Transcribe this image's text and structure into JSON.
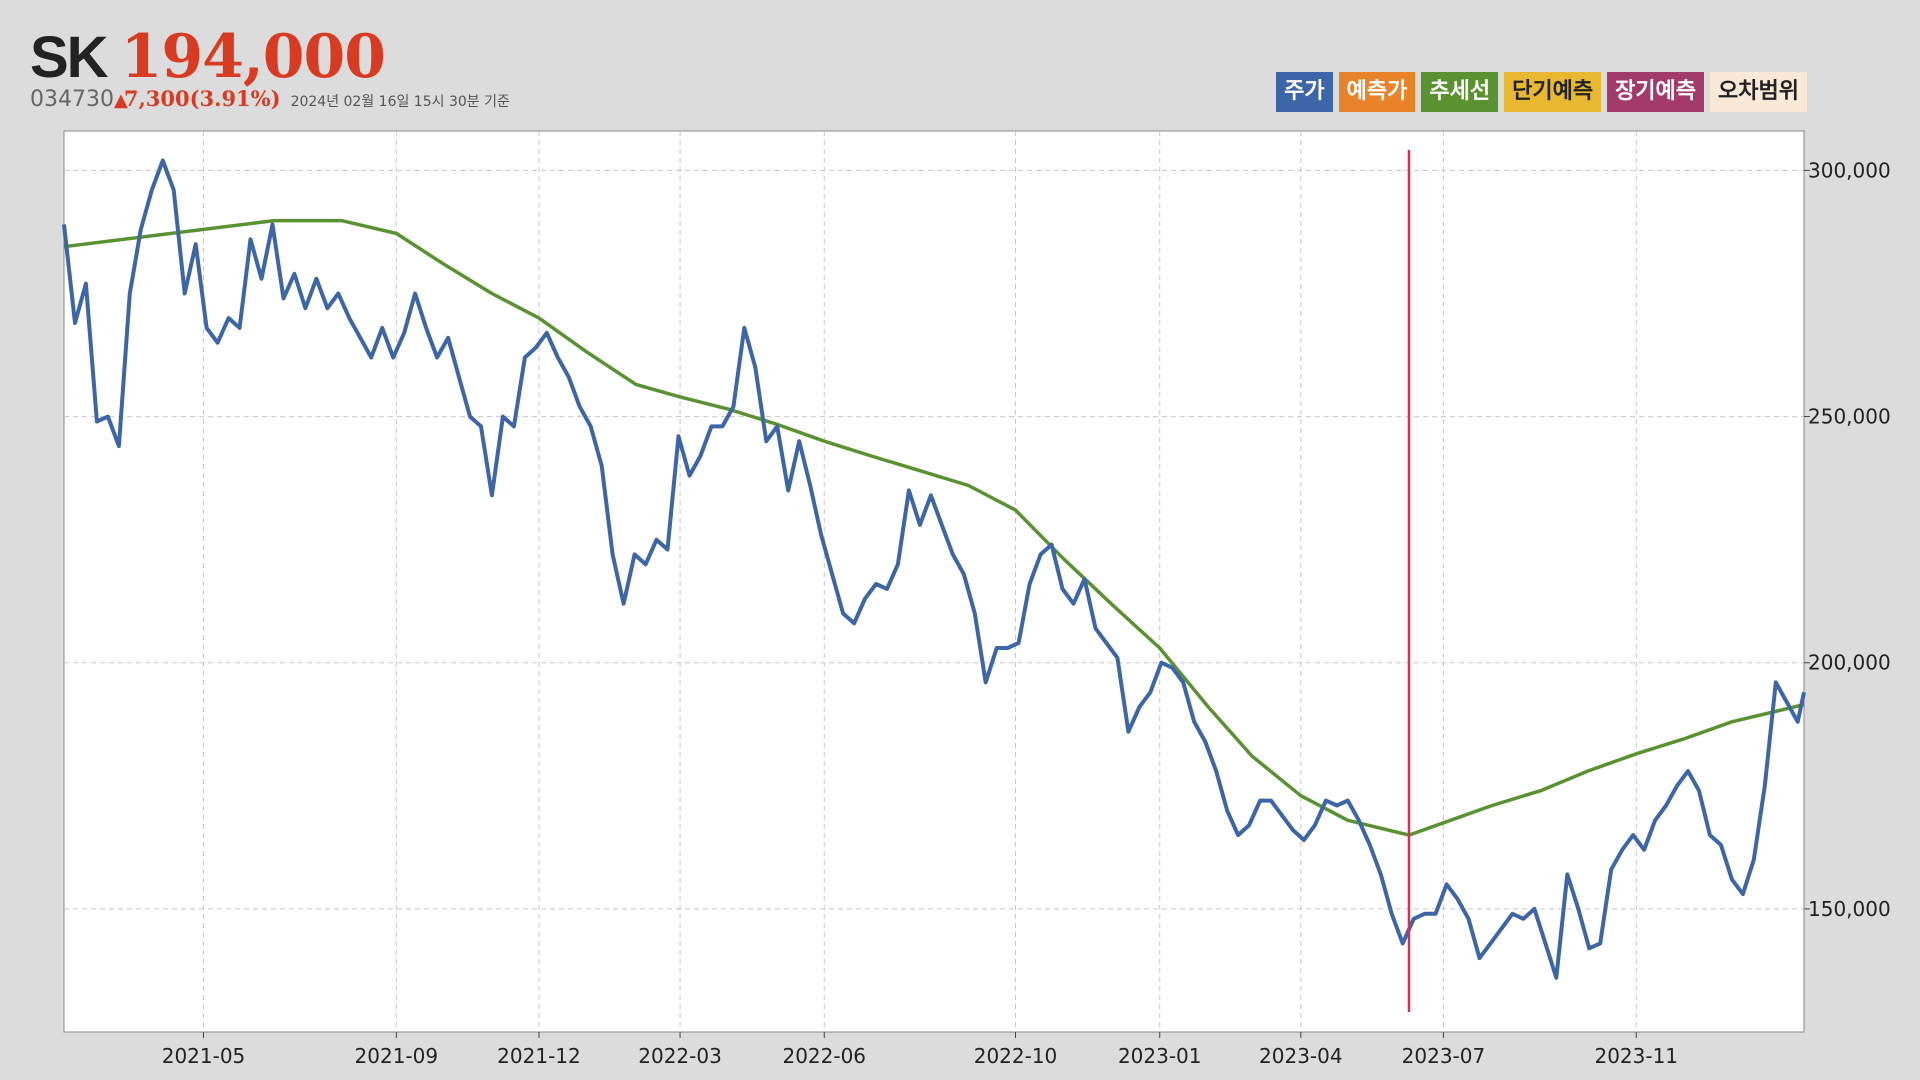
{
  "stock": {
    "name": "SK",
    "price": "194,000",
    "code": "034730",
    "change_arrow": "▲",
    "change": "7,300(3.91%)",
    "as_of": "2024년 02월 16일 15시 30분 기준"
  },
  "legend": [
    {
      "label": "주가",
      "color": "#3d66a8",
      "text_color": "#ffffff"
    },
    {
      "label": "예측가",
      "color": "#e9832a",
      "text_color": "#ffffff"
    },
    {
      "label": "추세선",
      "color": "#5a9232",
      "text_color": "#ffffff"
    },
    {
      "label": "단기예측",
      "color": "#e8b830",
      "text_color": "#222222"
    },
    {
      "label": "장기예측",
      "color": "#a23a6a",
      "text_color": "#ffffff"
    },
    {
      "label": "오차범위",
      "color": "#fbe9d7",
      "text_color": "#222222"
    }
  ],
  "chart_data": {
    "type": "line",
    "x_ticks": [
      "2021-05",
      "2021-09",
      "2021-12",
      "2022-03",
      "2022-06",
      "2022-10",
      "2023-01",
      "2023-04",
      "2023-07",
      "2023-11"
    ],
    "x_tick_dates": [
      "2021-05-01",
      "2021-09-01",
      "2021-12-01",
      "2022-03-01",
      "2022-06-01",
      "2022-10-01",
      "2023-01-01",
      "2023-04-01",
      "2023-07-01",
      "2023-11-01"
    ],
    "x_range": [
      "2021-02-01",
      "2024-02-16"
    ],
    "y_ticks": [
      "150,000",
      "200,000",
      "250,000",
      "300,000"
    ],
    "y_tick_values": [
      150000,
      200000,
      250000,
      300000
    ],
    "ylim": [
      125000,
      308000
    ],
    "y_axis_position": "right",
    "grid": true,
    "marker_line": {
      "date": "2023-06-09",
      "color": "#d63058"
    },
    "series": [
      {
        "name": "주가",
        "color": "#3d66a8",
        "points": [
          [
            "2021-02-01",
            289000
          ],
          [
            "2021-02-08",
            269000
          ],
          [
            "2021-02-15",
            277000
          ],
          [
            "2021-02-22",
            249000
          ],
          [
            "2021-03-01",
            250000
          ],
          [
            "2021-03-08",
            244000
          ],
          [
            "2021-03-15",
            275000
          ],
          [
            "2021-03-22",
            288000
          ],
          [
            "2021-03-29",
            296000
          ],
          [
            "2021-04-05",
            302000
          ],
          [
            "2021-04-12",
            296000
          ],
          [
            "2021-04-19",
            275000
          ],
          [
            "2021-04-26",
            285000
          ],
          [
            "2021-05-03",
            268000
          ],
          [
            "2021-05-10",
            265000
          ],
          [
            "2021-05-17",
            270000
          ],
          [
            "2021-05-24",
            268000
          ],
          [
            "2021-05-31",
            286000
          ],
          [
            "2021-06-07",
            278000
          ],
          [
            "2021-06-14",
            289000
          ],
          [
            "2021-06-21",
            274000
          ],
          [
            "2021-06-28",
            279000
          ],
          [
            "2021-07-05",
            272000
          ],
          [
            "2021-07-12",
            278000
          ],
          [
            "2021-07-19",
            272000
          ],
          [
            "2021-07-26",
            275000
          ],
          [
            "2021-08-02",
            270000
          ],
          [
            "2021-08-09",
            266000
          ],
          [
            "2021-08-16",
            262000
          ],
          [
            "2021-08-23",
            268000
          ],
          [
            "2021-08-30",
            262000
          ],
          [
            "2021-09-06",
            267000
          ],
          [
            "2021-09-13",
            275000
          ],
          [
            "2021-09-20",
            268000
          ],
          [
            "2021-09-27",
            262000
          ],
          [
            "2021-10-04",
            266000
          ],
          [
            "2021-10-11",
            258000
          ],
          [
            "2021-10-18",
            250000
          ],
          [
            "2021-10-25",
            248000
          ],
          [
            "2021-11-01",
            234000
          ],
          [
            "2021-11-08",
            250000
          ],
          [
            "2021-11-15",
            248000
          ],
          [
            "2021-11-22",
            262000
          ],
          [
            "2021-11-29",
            264000
          ],
          [
            "2021-12-06",
            267000
          ],
          [
            "2021-12-13",
            262000
          ],
          [
            "2021-12-20",
            258000
          ],
          [
            "2021-12-27",
            252000
          ],
          [
            "2022-01-03",
            248000
          ],
          [
            "2022-01-10",
            240000
          ],
          [
            "2022-01-17",
            222000
          ],
          [
            "2022-01-24",
            212000
          ],
          [
            "2022-01-31",
            222000
          ],
          [
            "2022-02-07",
            220000
          ],
          [
            "2022-02-14",
            225000
          ],
          [
            "2022-02-21",
            223000
          ],
          [
            "2022-02-28",
            246000
          ],
          [
            "2022-03-07",
            238000
          ],
          [
            "2022-03-14",
            242000
          ],
          [
            "2022-03-21",
            248000
          ],
          [
            "2022-03-28",
            248000
          ],
          [
            "2022-04-04",
            252000
          ],
          [
            "2022-04-11",
            268000
          ],
          [
            "2022-04-18",
            260000
          ],
          [
            "2022-04-25",
            245000
          ],
          [
            "2022-05-02",
            248000
          ],
          [
            "2022-05-09",
            235000
          ],
          [
            "2022-05-16",
            245000
          ],
          [
            "2022-05-23",
            236000
          ],
          [
            "2022-05-30",
            226000
          ],
          [
            "2022-06-06",
            218000
          ],
          [
            "2022-06-13",
            210000
          ],
          [
            "2022-06-20",
            208000
          ],
          [
            "2022-06-27",
            213000
          ],
          [
            "2022-07-04",
            216000
          ],
          [
            "2022-07-11",
            215000
          ],
          [
            "2022-07-18",
            220000
          ],
          [
            "2022-07-25",
            235000
          ],
          [
            "2022-08-01",
            228000
          ],
          [
            "2022-08-08",
            234000
          ],
          [
            "2022-08-15",
            228000
          ],
          [
            "2022-08-22",
            222000
          ],
          [
            "2022-08-29",
            218000
          ],
          [
            "2022-09-05",
            210000
          ],
          [
            "2022-09-12",
            196000
          ],
          [
            "2022-09-19",
            203000
          ],
          [
            "2022-09-26",
            203000
          ],
          [
            "2022-10-03",
            204000
          ],
          [
            "2022-10-10",
            216000
          ],
          [
            "2022-10-17",
            222000
          ],
          [
            "2022-10-24",
            224000
          ],
          [
            "2022-10-31",
            215000
          ],
          [
            "2022-11-07",
            212000
          ],
          [
            "2022-11-14",
            217000
          ],
          [
            "2022-11-21",
            207000
          ],
          [
            "2022-11-28",
            204000
          ],
          [
            "2022-12-05",
            201000
          ],
          [
            "2022-12-12",
            186000
          ],
          [
            "2022-12-19",
            191000
          ],
          [
            "2022-12-26",
            194000
          ],
          [
            "2023-01-02",
            200000
          ],
          [
            "2023-01-09",
            199000
          ],
          [
            "2023-01-16",
            196000
          ],
          [
            "2023-01-23",
            188000
          ],
          [
            "2023-01-30",
            184000
          ],
          [
            "2023-02-06",
            178000
          ],
          [
            "2023-02-13",
            170000
          ],
          [
            "2023-02-20",
            165000
          ],
          [
            "2023-02-27",
            167000
          ],
          [
            "2023-03-06",
            172000
          ],
          [
            "2023-03-13",
            172000
          ],
          [
            "2023-03-20",
            169000
          ],
          [
            "2023-03-27",
            166000
          ],
          [
            "2023-04-03",
            164000
          ],
          [
            "2023-04-10",
            167000
          ],
          [
            "2023-04-17",
            172000
          ],
          [
            "2023-04-24",
            171000
          ],
          [
            "2023-05-01",
            172000
          ],
          [
            "2023-05-08",
            168000
          ],
          [
            "2023-05-15",
            163000
          ],
          [
            "2023-05-22",
            157000
          ],
          [
            "2023-05-29",
            149000
          ],
          [
            "2023-06-05",
            143000
          ],
          [
            "2023-06-12",
            148000
          ],
          [
            "2023-06-19",
            149000
          ],
          [
            "2023-06-26",
            149000
          ],
          [
            "2023-07-03",
            155000
          ],
          [
            "2023-07-10",
            152000
          ],
          [
            "2023-07-17",
            148000
          ],
          [
            "2023-07-24",
            140000
          ],
          [
            "2023-07-31",
            143000
          ],
          [
            "2023-08-07",
            146000
          ],
          [
            "2023-08-14",
            149000
          ],
          [
            "2023-08-21",
            148000
          ],
          [
            "2023-08-28",
            150000
          ],
          [
            "2023-09-04",
            143000
          ],
          [
            "2023-09-11",
            136000
          ],
          [
            "2023-09-18",
            157000
          ],
          [
            "2023-09-25",
            150000
          ],
          [
            "2023-10-02",
            142000
          ],
          [
            "2023-10-09",
            143000
          ],
          [
            "2023-10-16",
            158000
          ],
          [
            "2023-10-23",
            162000
          ],
          [
            "2023-10-30",
            165000
          ],
          [
            "2023-11-06",
            162000
          ],
          [
            "2023-11-13",
            168000
          ],
          [
            "2023-11-20",
            171000
          ],
          [
            "2023-11-27",
            175000
          ],
          [
            "2023-12-04",
            178000
          ],
          [
            "2023-12-11",
            174000
          ],
          [
            "2023-12-18",
            165000
          ],
          [
            "2023-12-25",
            163000
          ],
          [
            "2024-01-01",
            156000
          ],
          [
            "2024-01-08",
            153000
          ],
          [
            "2024-01-15",
            160000
          ],
          [
            "2024-01-22",
            175000
          ],
          [
            "2024-01-29",
            196000
          ],
          [
            "2024-02-05",
            192000
          ],
          [
            "2024-02-12",
            188000
          ],
          [
            "2024-02-16",
            194000
          ]
        ]
      },
      {
        "name": "추세선",
        "color": "#5a9232",
        "points": [
          [
            "2021-02-01",
            284500
          ],
          [
            "2021-06-15",
            289800
          ],
          [
            "2021-07-28",
            289800
          ],
          [
            "2021-09-01",
            287200
          ],
          [
            "2021-10-01",
            281000
          ],
          [
            "2021-11-01",
            275000
          ],
          [
            "2021-12-01",
            270000
          ],
          [
            "2022-01-01",
            263000
          ],
          [
            "2022-02-01",
            256500
          ],
          [
            "2022-03-01",
            254000
          ],
          [
            "2022-04-01",
            251500
          ],
          [
            "2022-05-01",
            248500
          ],
          [
            "2022-06-01",
            245000
          ],
          [
            "2022-07-01",
            242000
          ],
          [
            "2022-08-01",
            239000
          ],
          [
            "2022-09-01",
            236000
          ],
          [
            "2022-10-01",
            231000
          ],
          [
            "2022-11-01",
            221000
          ],
          [
            "2022-12-01",
            212000
          ],
          [
            "2023-01-01",
            203000
          ],
          [
            "2023-02-01",
            191000
          ],
          [
            "2023-03-01",
            181000
          ],
          [
            "2023-04-01",
            173000
          ],
          [
            "2023-05-01",
            168000
          ],
          [
            "2023-06-09",
            165000
          ],
          [
            "2023-07-01",
            167500
          ],
          [
            "2023-08-01",
            171000
          ],
          [
            "2023-09-01",
            174000
          ],
          [
            "2023-10-01",
            178000
          ],
          [
            "2023-11-01",
            181500
          ],
          [
            "2023-12-01",
            184500
          ],
          [
            "2024-01-01",
            188000
          ],
          [
            "2024-02-16",
            191500
          ]
        ]
      }
    ]
  }
}
